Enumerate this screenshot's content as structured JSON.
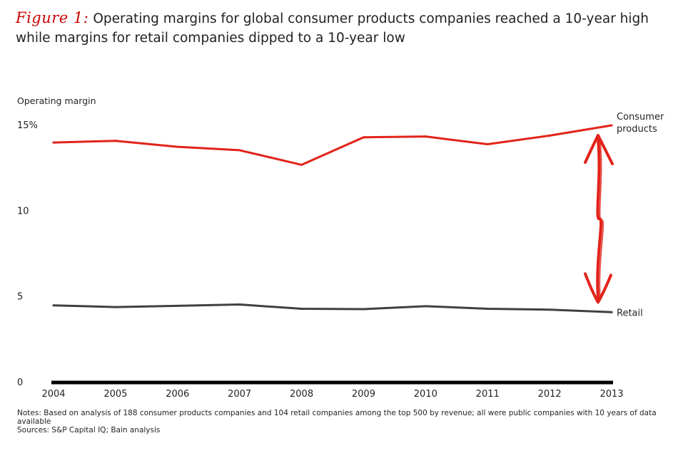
{
  "figure": {
    "label": "Figure 1:",
    "title": "Operating margins for global consumer products companies reached a 10-year high while margins for retail companies dipped to a 10-year low"
  },
  "colors": {
    "consumer_products": "#e2231a",
    "retail": "#404040",
    "axis": "#000000",
    "arrow": "#e2231a"
  },
  "chart_data": {
    "type": "line",
    "title": "Operating margins for global consumer products companies reached a 10-year high while margins for retail companies dipped to a 10-year low",
    "ylabel": "Operating margin",
    "xlabel": "",
    "x": [
      "2004",
      "2005",
      "2006",
      "2007",
      "2008",
      "2009",
      "2010",
      "2011",
      "2012",
      "2013"
    ],
    "ylim": [
      0,
      15
    ],
    "yticks": [
      {
        "value": 0,
        "label": "0"
      },
      {
        "value": 5,
        "label": "5"
      },
      {
        "value": 10,
        "label": "10"
      },
      {
        "value": 15,
        "label": "15%"
      }
    ],
    "grid": false,
    "series": [
      {
        "name": "Consumer products",
        "label_lines": [
          "Consumer",
          "products"
        ],
        "values": [
          14.0,
          14.1,
          13.75,
          13.55,
          12.7,
          14.3,
          14.35,
          13.9,
          14.4,
          15.0
        ]
      },
      {
        "name": "Retail",
        "label_lines": [
          "Retail"
        ],
        "values": [
          4.5,
          4.4,
          4.47,
          4.55,
          4.3,
          4.28,
          4.45,
          4.3,
          4.25,
          4.1
        ]
      }
    ],
    "annotation": "double-headed arrow spanning the gap between the two series in 2013"
  },
  "footnotes": {
    "notes": "Notes: Based on analysis of 188 consumer products companies and 104 retail companies among the top 500 by revenue; all were public companies with 10 years of data available",
    "sources": "Sources: S&P Capital IQ; Bain analysis"
  }
}
